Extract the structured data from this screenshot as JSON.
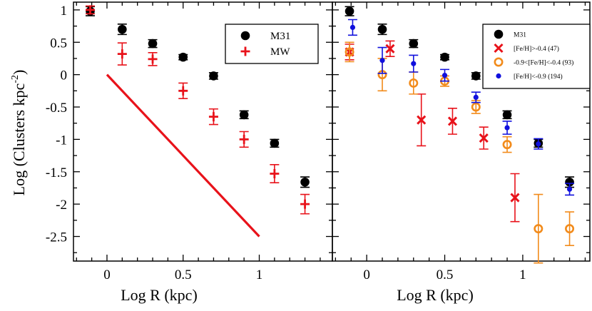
{
  "chart_data": [
    {
      "type": "scatter",
      "panel": "left",
      "xlabel": "Log R (kpc)",
      "ylabel": "Log (Clusters kpc^-2)",
      "ylabel_main": "Log (Clusters kpc",
      "ylabel_sup": "-2",
      "ylabel_close": ")",
      "xlim": [
        -0.22,
        1.48
      ],
      "ylim": [
        -2.88,
        1.12
      ],
      "xticks": [
        0,
        0.5,
        1
      ],
      "xtick_labels": [
        "0",
        "0.5",
        "1"
      ],
      "yticks": [
        1,
        0.5,
        0,
        -0.5,
        -1,
        -1.5,
        -2,
        -2.5
      ],
      "ytick_labels": [
        "1",
        "0.5",
        "0",
        "-0.5",
        "-1",
        "-1.5",
        "-2",
        "-2.5"
      ],
      "legend_position": "top-right",
      "series": [
        {
          "name": "M31",
          "marker": "filled-circle",
          "color": "#000000",
          "x": [
            -0.11,
            0.1,
            0.3,
            0.5,
            0.7,
            0.9,
            1.1,
            1.3
          ],
          "y": [
            0.98,
            0.7,
            0.48,
            0.27,
            -0.02,
            -0.62,
            -1.06,
            -1.66
          ],
          "err": [
            0.07,
            0.08,
            0.06,
            0.04,
            0.05,
            0.06,
            0.06,
            0.08
          ]
        },
        {
          "name": "MW",
          "marker": "plus",
          "color": "#e8121a",
          "x": [
            -0.11,
            0.1,
            0.3,
            0.5,
            0.7,
            0.9,
            1.1,
            1.3
          ],
          "y": [
            1.0,
            0.32,
            0.24,
            -0.25,
            -0.65,
            -1.0,
            -1.53,
            -2.0
          ],
          "err": [
            0.06,
            0.17,
            0.1,
            0.12,
            0.12,
            0.12,
            0.14,
            0.15
          ]
        }
      ],
      "reference_line": {
        "color": "#e8121a",
        "x": [
          0,
          1
        ],
        "y": [
          0,
          -2.5
        ]
      }
    },
    {
      "type": "scatter",
      "panel": "right",
      "xlabel": "Log R (kpc)",
      "xlim": [
        -0.22,
        1.43
      ],
      "ylim": [
        -2.88,
        1.12
      ],
      "xticks": [
        0,
        0.5,
        1
      ],
      "xtick_labels": [
        "0",
        "0.5",
        "1"
      ],
      "legend_position": "top-right",
      "series": [
        {
          "name": "M31",
          "marker": "filled-circle",
          "color": "#000000",
          "x": [
            -0.11,
            0.1,
            0.3,
            0.5,
            0.7,
            0.9,
            1.1,
            1.3
          ],
          "y": [
            0.98,
            0.7,
            0.48,
            0.27,
            -0.02,
            -0.62,
            -1.06,
            -1.66
          ],
          "err": [
            0.07,
            0.08,
            0.06,
            0.04,
            0.05,
            0.06,
            0.06,
            0.08
          ]
        },
        {
          "name": "[Fe/H]>-0.4 (47)",
          "marker": "x",
          "color": "#e8121a",
          "x": [
            -0.11,
            0.15,
            0.35,
            0.55,
            0.75,
            0.95
          ],
          "y": [
            0.35,
            0.4,
            -0.7,
            -0.72,
            -0.98,
            -1.9
          ],
          "err": [
            0.12,
            0.12,
            0.4,
            0.2,
            0.17,
            0.37
          ]
        },
        {
          "name": "-0.9<[Fe/H]<-0.4 (93)",
          "marker": "open-circle",
          "color": "#f28b1b",
          "x": [
            -0.11,
            0.1,
            0.3,
            0.5,
            0.7,
            0.9,
            1.1,
            1.3
          ],
          "y": [
            0.35,
            0.0,
            -0.13,
            -0.1,
            -0.5,
            -1.08,
            -2.38,
            -2.38
          ],
          "err": [
            0.15,
            0.25,
            0.17,
            0.08,
            0.1,
            0.12,
            0.53,
            0.26
          ]
        },
        {
          "name": "[Fe/H]<-0.9 (194)",
          "marker": "small-filled-circle",
          "color": "#1010dd",
          "x": [
            -0.09,
            0.1,
            0.3,
            0.5,
            0.7,
            0.9,
            1.1,
            1.3
          ],
          "y": [
            0.73,
            0.22,
            0.17,
            -0.01,
            -0.35,
            -0.82,
            -1.07,
            -1.77
          ],
          "err": [
            0.12,
            0.2,
            0.13,
            0.09,
            0.08,
            0.1,
            0.08,
            0.09
          ]
        }
      ]
    }
  ]
}
